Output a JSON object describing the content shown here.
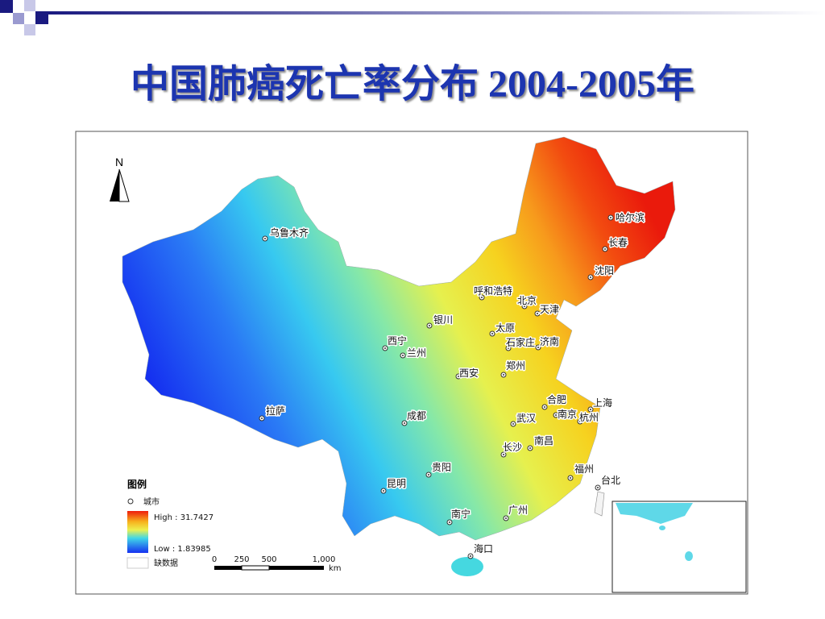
{
  "title": "中国肺癌死亡率分布  2004-2005年",
  "map": {
    "north": "N",
    "cities": [
      {
        "label": "乌鲁木齐"
      },
      {
        "label": "哈尔滨"
      },
      {
        "label": "长春"
      },
      {
        "label": "沈阳"
      },
      {
        "label": "呼和浩特"
      },
      {
        "label": "北京"
      },
      {
        "label": "天津"
      },
      {
        "label": "银川"
      },
      {
        "label": "太原"
      },
      {
        "label": "西宁"
      },
      {
        "label": "兰州"
      },
      {
        "label": "石家庄"
      },
      {
        "label": "济南"
      },
      {
        "label": "西安"
      },
      {
        "label": "郑州"
      },
      {
        "label": "合肥"
      },
      {
        "label": "上海"
      },
      {
        "label": "南京"
      },
      {
        "label": "杭州"
      },
      {
        "label": "拉萨"
      },
      {
        "label": "成都"
      },
      {
        "label": "武汉"
      },
      {
        "label": "南昌"
      },
      {
        "label": "长沙"
      },
      {
        "label": "贵阳"
      },
      {
        "label": "昆明"
      },
      {
        "label": "福州"
      },
      {
        "label": "台北"
      },
      {
        "label": "南宁"
      },
      {
        "label": "广州"
      },
      {
        "label": "海口"
      }
    ],
    "legend": {
      "title": "图例",
      "city": "城市",
      "high": "High : 31.7427",
      "low": "Low : 1.83985",
      "missing": "缺数据"
    },
    "scale_bar": {
      "ticks": [
        "0",
        "250",
        "500",
        "1,000"
      ],
      "unit": "km"
    }
  }
}
